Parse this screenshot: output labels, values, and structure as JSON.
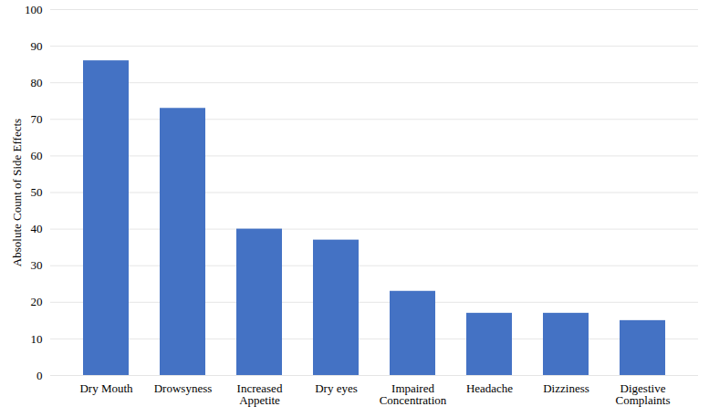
{
  "chart_data": {
    "type": "bar",
    "ylabel": "Absolute Count of Side Effects",
    "categories": [
      "Dry Mouth",
      "Drowsyness",
      "Increased Appetite",
      "Dry eyes",
      "Impaired Concentration",
      "Headache",
      "Dizziness",
      "Digestive Complaints"
    ],
    "values": [
      86,
      73,
      40,
      37,
      23,
      17,
      17,
      15
    ],
    "color": "#4472c4",
    "ylim": [
      0,
      100
    ],
    "yticks": [
      0,
      10,
      20,
      30,
      40,
      50,
      60,
      70,
      80,
      90,
      100
    ],
    "grid": true
  }
}
